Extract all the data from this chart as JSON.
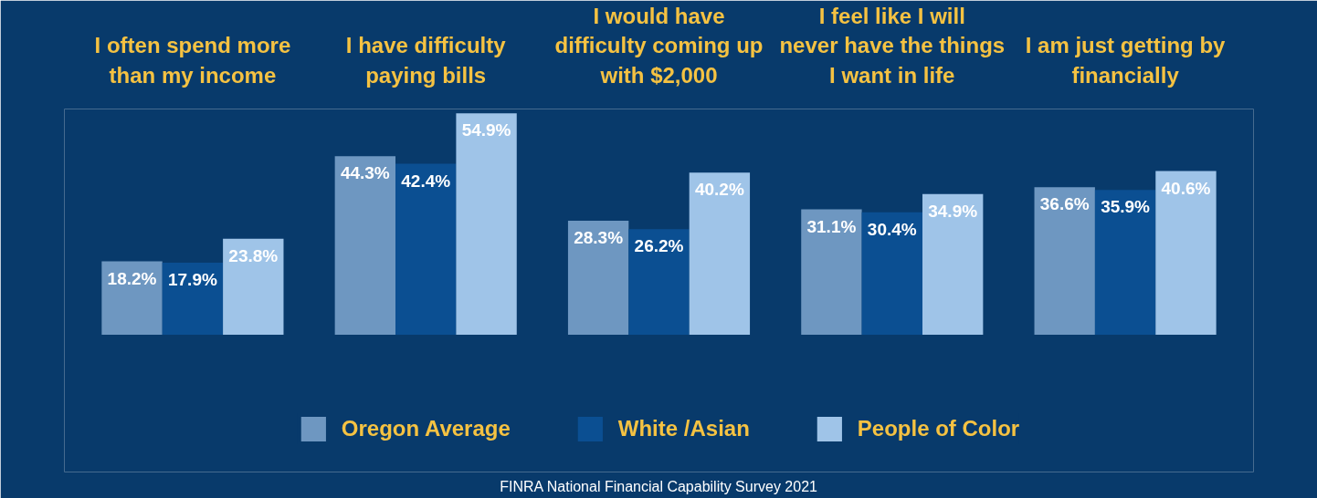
{
  "chart_data": {
    "type": "bar",
    "categories": [
      "I often spend more than my income",
      "I have difficulty paying bills",
      "I would have difficulty coming up with $2,000",
      "I feel like I will never have the things I want in life",
      "I am just getting by financially"
    ],
    "series": [
      {
        "name": "Oregon Average",
        "color": "#6e97c1",
        "values": [
          18.2,
          44.3,
          28.3,
          31.1,
          36.6
        ],
        "value_labels": [
          "18.2%",
          "44.3%",
          "28.3%",
          "31.1%",
          "36.6%"
        ]
      },
      {
        "name": "White /Asian",
        "color": "#0b4f92",
        "values": [
          17.9,
          42.4,
          26.2,
          30.4,
          35.9
        ],
        "value_labels": [
          "17.9%",
          "42.4%",
          "26.2%",
          "30.4%",
          "35.9%"
        ]
      },
      {
        "name": "People of Color",
        "color": "#9fc4e8",
        "values": [
          23.8,
          54.9,
          40.2,
          34.9,
          40.6
        ],
        "value_labels": [
          "23.8%",
          "54.9%",
          "40.2%",
          "34.9%",
          "40.6%"
        ]
      }
    ],
    "legend": "bottom",
    "annotations": [
      "FINRA National Financial Capability Survey 2021"
    ]
  }
}
